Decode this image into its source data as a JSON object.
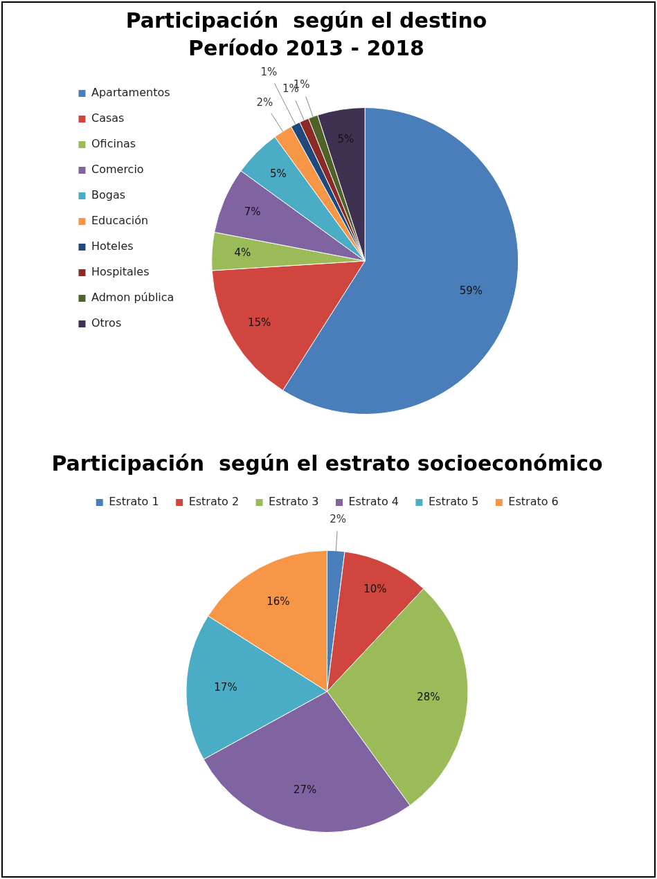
{
  "chart_data": [
    {
      "type": "pie",
      "title": "Participación  según el destino",
      "subtitle": "Período 2013 - 2018",
      "legend": "left",
      "categories": [
        "Apartamentos",
        "Casas",
        "Oficinas",
        "Comercio",
        "Bogas",
        "Educación",
        "Hoteles",
        "Hospitales",
        "Admon pública",
        "Otros"
      ],
      "values": [
        59,
        15,
        4,
        7,
        5,
        2,
        1,
        1,
        1,
        5
      ],
      "value_labels": [
        "59%",
        "15%",
        "4%",
        "7%",
        "5%",
        "2%",
        "1%",
        "1%",
        "1%",
        "5%"
      ],
      "colors": [
        "#4a7ebb",
        "#d0463f",
        "#9bbb59",
        "#8064a2",
        "#4bacc6",
        "#f79646",
        "#1f497d",
        "#8b2a27",
        "#4f6228",
        "#3f3151"
      ]
    },
    {
      "type": "pie",
      "title": "Participación  según el estrato socioeconómico",
      "legend": "top",
      "categories": [
        "Estrato 1",
        "Estrato 2",
        "Estrato 3",
        "Estrato 4",
        "Estrato 5",
        "Estrato 6"
      ],
      "values": [
        2,
        10,
        28,
        27,
        17,
        16
      ],
      "value_labels": [
        "2%",
        "10%",
        "28%",
        "27%",
        "17%",
        "16%"
      ],
      "colors": [
        "#4a7ebb",
        "#d0463f",
        "#9bbb59",
        "#8064a2",
        "#4bacc6",
        "#f79646"
      ]
    }
  ]
}
